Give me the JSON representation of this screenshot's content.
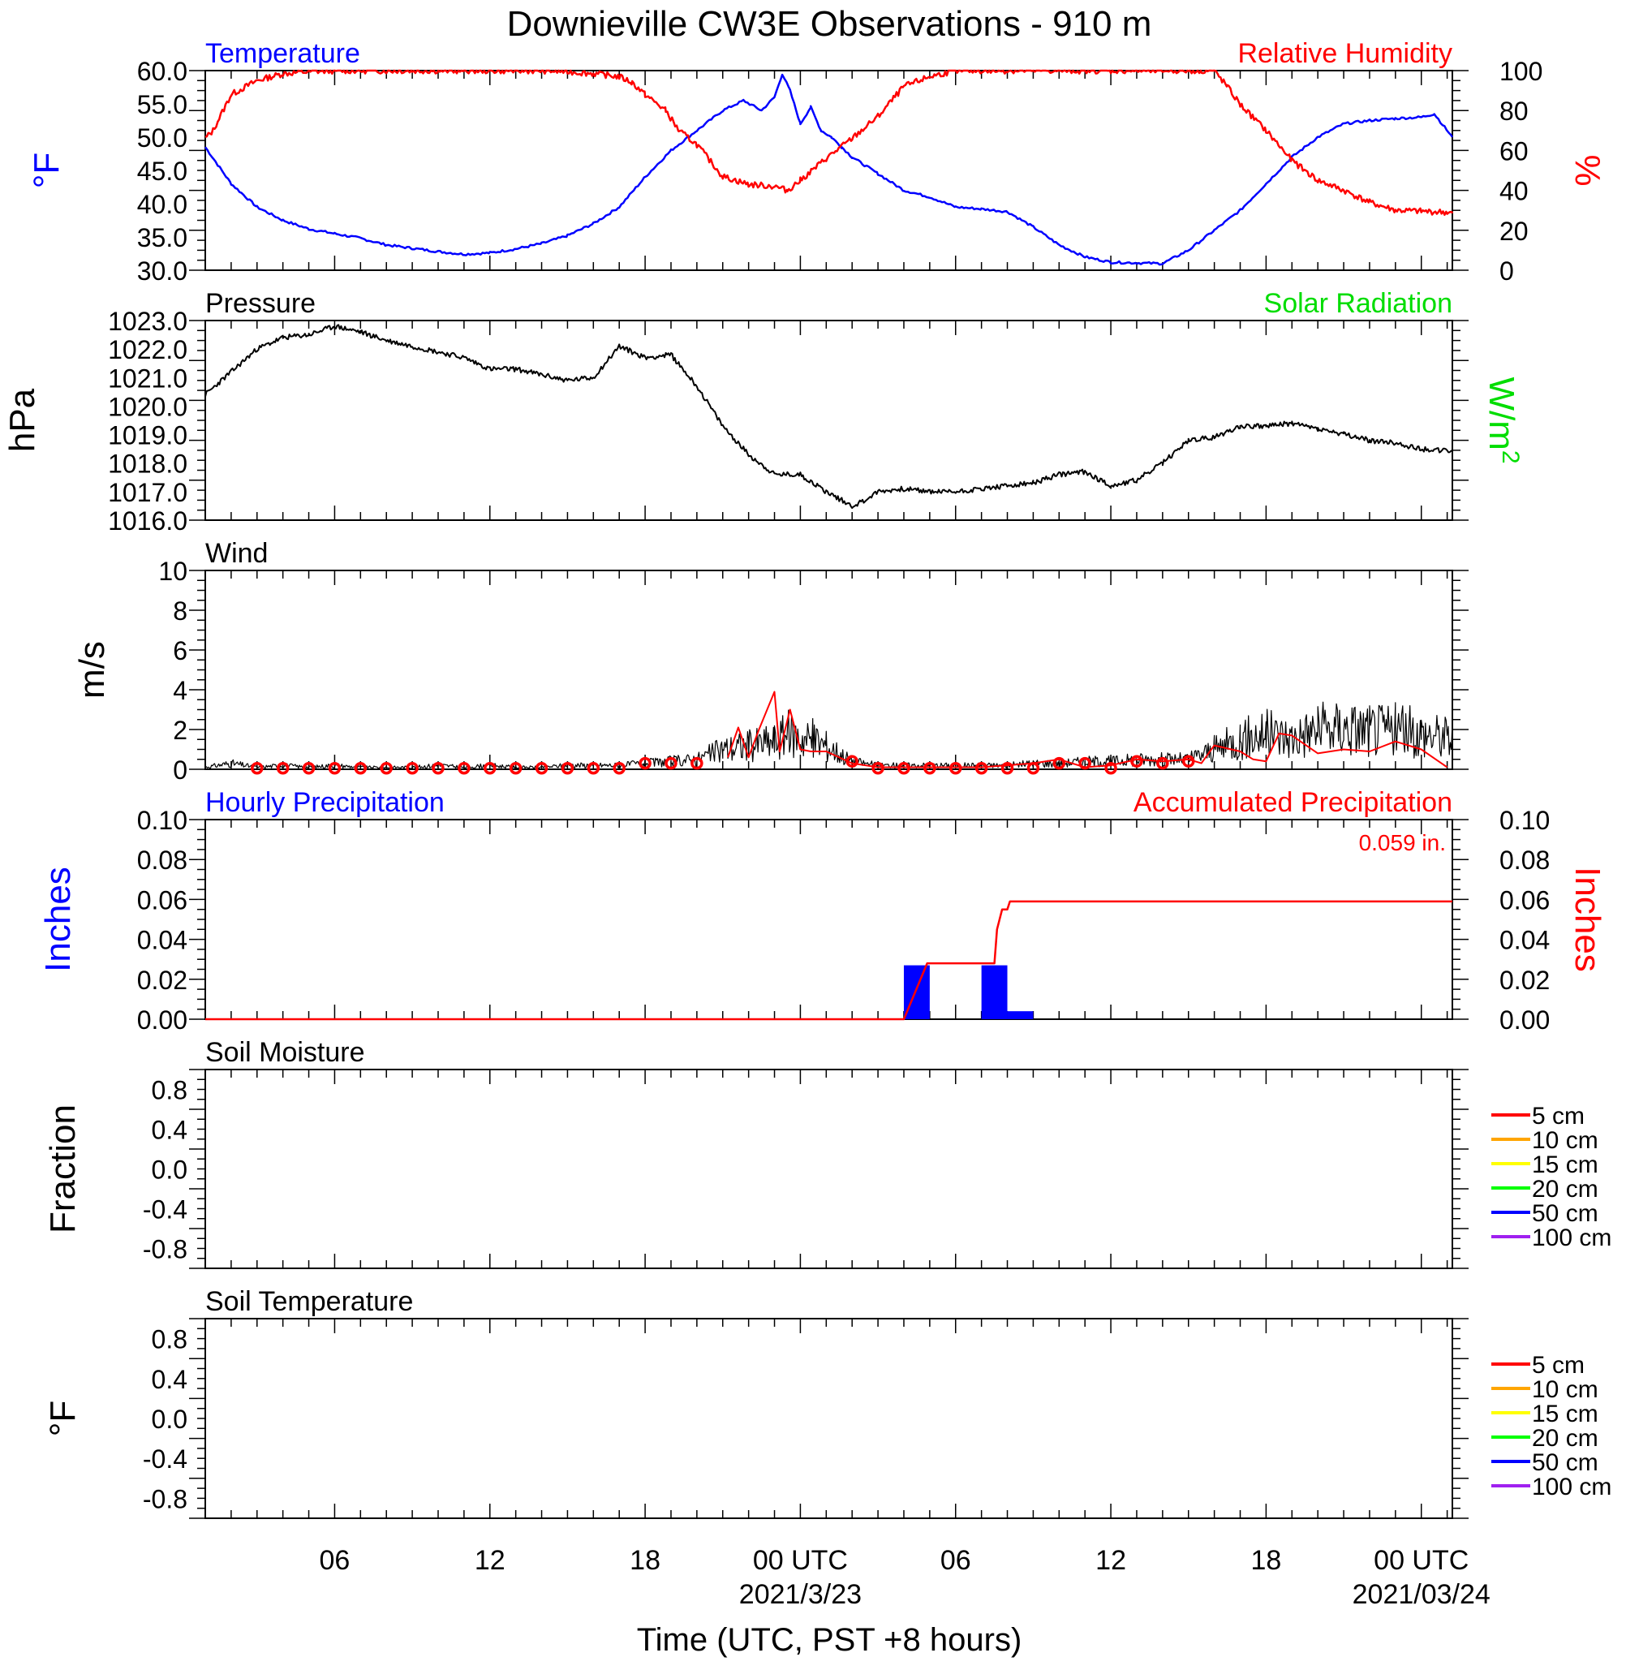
{
  "title": "Downieville CW3E Observations - 910 m",
  "x_axis": {
    "ticks": [
      {
        "label": "06",
        "hours": 6
      },
      {
        "label": "12",
        "hours": 12
      },
      {
        "label": "18",
        "hours": 18
      },
      {
        "label": "00 UTC",
        "date": "2021/3/23",
        "hours": 24
      },
      {
        "label": "06",
        "hours": 30
      },
      {
        "label": "12",
        "hours": 36
      },
      {
        "label": "18",
        "hours": 42
      },
      {
        "label": "00 UTC",
        "date": "2021/03/24",
        "hours": 48
      }
    ],
    "xlabel": "Time (UTC, PST +8 hours)",
    "range_hours": [
      1,
      49.2
    ]
  },
  "colors": {
    "temperature": "#0000ff",
    "humidity": "#ff0000",
    "pressure": "#000000",
    "solar": "#00dd00",
    "wind": "#000000",
    "gust": "#ff0000",
    "hourly": "#0000ff",
    "accum": "#ff0000"
  },
  "legend_depths": [
    {
      "label": "5 cm",
      "color": "#ff0000"
    },
    {
      "label": "10 cm",
      "color": "#ffa500"
    },
    {
      "label": "15 cm",
      "color": "#ffff00"
    },
    {
      "label": "20 cm",
      "color": "#00ff00"
    },
    {
      "label": "50 cm",
      "color": "#0000ff"
    },
    {
      "label": "100 cm",
      "color": "#a020f0"
    }
  ],
  "chart_data": [
    {
      "type": "line",
      "panel": "temperature-humidity",
      "title_left": "Temperature",
      "title_right": "Relative Humidity",
      "ylabel_left": "°F",
      "ylabel_right": "%",
      "ylim": [
        30,
        60
      ],
      "yticks": [
        "60.0",
        "55.0",
        "50.0",
        "45.0",
        "40.0",
        "35.0",
        "30.0"
      ],
      "ylim_right": [
        0,
        100
      ],
      "yticks_right": [
        "100",
        "80",
        "60",
        "40",
        "20",
        "0"
      ],
      "series": [
        {
          "name": "Temperature",
          "x": [
            1,
            2,
            3,
            4,
            5,
            6,
            7,
            8,
            9,
            10,
            11,
            12,
            13,
            14,
            15,
            16,
            17,
            18,
            19,
            20,
            21,
            21.8,
            22.5,
            23,
            23.3,
            23.6,
            24,
            24.4,
            24.8,
            25.2,
            25.6,
            26,
            27,
            28,
            29,
            30,
            31,
            32,
            33,
            34,
            35,
            36,
            37,
            38,
            39,
            40,
            41,
            42,
            43,
            44,
            45,
            46,
            47,
            48,
            48.5,
            49.2
          ],
          "values": [
            48.5,
            43,
            39.5,
            37.5,
            36.2,
            35.5,
            34.8,
            33.8,
            33.3,
            32.8,
            32.4,
            32.6,
            33.2,
            34,
            35.2,
            37,
            39.5,
            44,
            48,
            51,
            54,
            55.5,
            54,
            56,
            59.5,
            57,
            52,
            54.5,
            51,
            50,
            48.5,
            47,
            44.5,
            42,
            41,
            39.5,
            39.2,
            38.8,
            36.5,
            33.8,
            32,
            31.2,
            31.1,
            31,
            33,
            36,
            39,
            43,
            47,
            50,
            52,
            52.5,
            52.8,
            53,
            53.5,
            50
          ]
        },
        {
          "name": "Relative Humidity",
          "x": [
            1,
            1.3,
            2,
            3,
            4,
            5,
            6,
            7,
            8,
            9,
            10,
            11,
            12,
            13,
            14,
            15,
            16,
            17,
            17.5,
            18,
            18.8,
            19.3,
            20,
            21,
            22,
            23,
            23.5,
            24,
            25,
            26,
            27,
            28,
            29,
            30,
            31,
            32,
            33,
            34,
            35,
            36,
            37,
            38,
            39,
            39.5,
            40,
            40.5,
            41,
            42,
            43,
            44,
            45,
            46,
            47,
            48,
            49,
            49.2
          ],
          "values": [
            66,
            70,
            88,
            95,
            98.5,
            99.5,
            100,
            100,
            100,
            100,
            100,
            100,
            100,
            100,
            100,
            99.5,
            98.5,
            97,
            94,
            88,
            80,
            70,
            63,
            47,
            43,
            42,
            40,
            45,
            56,
            66,
            77,
            92,
            97,
            100,
            100,
            100,
            100,
            100,
            100,
            100,
            100,
            100,
            100,
            100,
            100,
            92,
            83,
            70,
            55,
            45,
            40,
            34,
            30,
            29.5,
            29,
            28.5
          ]
        }
      ]
    },
    {
      "type": "line",
      "panel": "pressure-solar",
      "title_left": "Pressure",
      "title_right": "Solar Radiation",
      "ylabel_left": "hPa",
      "ylabel_right": "W/m²",
      "ylabel_right_base": "W/m",
      "ylabel_right_sup": "2",
      "ylim": [
        1016,
        1023
      ],
      "yticks": [
        "1023.0",
        "1022.0",
        "1021.0",
        "1020.0",
        "1019.0",
        "1018.0",
        "1017.0",
        "1016.0"
      ],
      "series": [
        {
          "name": "Pressure",
          "x": [
            1,
            2,
            3,
            4,
            5,
            6,
            7,
            8,
            9,
            10,
            11,
            12,
            13,
            14,
            15,
            16,
            17,
            18,
            19,
            20,
            21,
            22,
            23,
            24,
            25,
            26,
            26.5,
            27,
            28,
            29,
            30,
            31,
            32,
            33,
            34,
            35,
            36,
            37,
            38,
            39,
            40,
            41,
            42,
            43,
            44,
            45,
            46,
            47,
            48,
            49.2
          ],
          "values": [
            1020.4,
            1021.2,
            1022.0,
            1022.4,
            1022.5,
            1022.8,
            1022.6,
            1022.3,
            1022.1,
            1021.9,
            1021.7,
            1021.3,
            1021.3,
            1021.1,
            1020.9,
            1021.0,
            1022.1,
            1021.7,
            1021.8,
            1020.7,
            1019.3,
            1018.3,
            1017.6,
            1017.6,
            1017.0,
            1016.5,
            1016.7,
            1017.0,
            1017.1,
            1017.0,
            1017.0,
            1017.1,
            1017.2,
            1017.3,
            1017.6,
            1017.7,
            1017.2,
            1017.4,
            1018.0,
            1018.8,
            1018.9,
            1019.3,
            1019.3,
            1019.4,
            1019.2,
            1019.0,
            1018.8,
            1018.7,
            1018.5,
            1018.4
          ]
        }
      ]
    },
    {
      "type": "line",
      "panel": "wind",
      "title_left": "Wind",
      "ylabel_left": "m/s",
      "ylim": [
        0,
        10
      ],
      "yticks": [
        "10",
        "8",
        "6",
        "4",
        "2",
        "0"
      ],
      "series": [
        {
          "name": "Wind",
          "x": [
            1,
            2,
            3,
            4,
            5,
            6,
            7,
            8,
            9,
            10,
            11,
            12,
            13,
            14,
            15,
            16,
            17,
            18,
            19,
            20,
            21,
            22,
            23,
            23.5,
            24,
            24.5,
            25,
            26,
            27,
            28,
            29,
            30,
            31,
            32,
            33,
            34,
            35,
            36,
            37,
            38,
            39,
            40,
            41,
            42,
            43,
            44,
            45,
            46,
            47,
            48,
            49.2
          ],
          "values": [
            0.1,
            0.3,
            0.1,
            0.2,
            0.1,
            0.2,
            0.1,
            0.1,
            0.1,
            0.2,
            0.1,
            0.2,
            0.1,
            0.1,
            0.2,
            0.2,
            0.2,
            0.3,
            0.4,
            0.5,
            1.0,
            1.2,
            1.4,
            1.8,
            1.6,
            1.5,
            1.2,
            0.4,
            0.2,
            0.2,
            0.2,
            0.2,
            0.2,
            0.2,
            0.3,
            0.3,
            0.4,
            0.4,
            0.5,
            0.5,
            0.5,
            1.0,
            1.5,
            1.8,
            1.6,
            2.0,
            2.1,
            2.0,
            2.0,
            1.8,
            1.6
          ]
        },
        {
          "name": "Gust",
          "x": [
            21.2,
            21.6,
            22.0,
            22.4,
            23.0,
            23.2,
            23.6,
            24.0,
            24.4,
            25.0,
            26,
            27,
            28,
            29,
            30,
            31,
            32,
            33,
            34,
            35,
            36,
            37,
            38,
            39,
            39.5,
            40,
            41,
            41.5,
            42,
            42.5,
            43,
            44,
            45,
            46,
            47,
            48,
            49
          ],
          "values": [
            0.6,
            2.1,
            0.6,
            2.0,
            3.9,
            0.9,
            3.0,
            1.0,
            0.9,
            0.9,
            0.3,
            0.1,
            0.1,
            0.1,
            0.1,
            0.1,
            0.2,
            0.3,
            0.5,
            0.1,
            0.2,
            0.5,
            0.4,
            0.5,
            0.3,
            1.2,
            0.9,
            0.5,
            0.4,
            1.8,
            1.7,
            0.8,
            1.0,
            0.9,
            1.4,
            1.0,
            0.1
          ]
        },
        {
          "name": "Hourly wind markers",
          "x": [
            3,
            4,
            5,
            6,
            7,
            8,
            9,
            10,
            11,
            12,
            13,
            14,
            15,
            16,
            17,
            18,
            19,
            20,
            26,
            27,
            28,
            29,
            30,
            31,
            32,
            33,
            34,
            35,
            36,
            37,
            38,
            39
          ],
          "values": [
            0.05,
            0.05,
            0.05,
            0.05,
            0.05,
            0.05,
            0.05,
            0.05,
            0.05,
            0.05,
            0.05,
            0.05,
            0.05,
            0.05,
            0.05,
            0.3,
            0.3,
            0.3,
            0.4,
            0.05,
            0.05,
            0.05,
            0.05,
            0.05,
            0.05,
            0.05,
            0.3,
            0.3,
            0.05,
            0.4,
            0.3,
            0.4
          ]
        }
      ]
    },
    {
      "type": "bar",
      "panel": "precipitation",
      "title_left": "Hourly Precipitation",
      "title_right": "Accumulated Precipitation",
      "annotation": "0.059 in.",
      "ylabel_left": "Inches",
      "ylabel_right": "Inches",
      "ylim": [
        0,
        0.1
      ],
      "yticks": [
        "0.10",
        "0.08",
        "0.06",
        "0.04",
        "0.02",
        "0.00"
      ],
      "yticks_right": [
        "0.10",
        "0.08",
        "0.06",
        "0.04",
        "0.02",
        "0.00"
      ],
      "series": [
        {
          "name": "Hourly Precipitation",
          "bars": [
            {
              "x0": 28.0,
              "x1": 29.0,
              "value": 0.027
            },
            {
              "x0": 31.0,
              "x1": 32.0,
              "value": 0.027
            },
            {
              "x0": 32.0,
              "x1": 33.0,
              "value": 0.004
            }
          ]
        },
        {
          "name": "Accumulated Precipitation",
          "x": [
            1,
            28.0,
            28.9,
            31.5,
            31.6,
            31.8,
            32.0,
            32.1,
            49.2
          ],
          "values": [
            0,
            0,
            0.028,
            0.028,
            0.045,
            0.055,
            0.055,
            0.059,
            0.059
          ]
        }
      ]
    },
    {
      "type": "line",
      "panel": "soil-moisture",
      "title_left": "Soil Moisture",
      "ylabel_left": "Fraction",
      "ylim": [
        -1,
        1
      ],
      "yticks": [
        "0.8",
        "0.4",
        "0.0",
        "-0.4",
        "-0.8"
      ],
      "series": []
    },
    {
      "type": "line",
      "panel": "soil-temperature",
      "title_left": "Soil Temperature",
      "ylabel_left": "°F",
      "ylim": [
        -1,
        1
      ],
      "yticks": [
        "0.8",
        "0.4",
        "0.0",
        "-0.4",
        "-0.8"
      ],
      "series": []
    }
  ]
}
